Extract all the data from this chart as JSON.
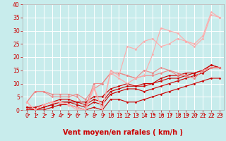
{
  "title": "",
  "xlabel": "Vent moyen/en rafales ( km/h )",
  "ylabel": "",
  "xlim": [
    -0.5,
    23.5
  ],
  "ylim": [
    0,
    40
  ],
  "xticks": [
    0,
    1,
    2,
    3,
    4,
    5,
    6,
    7,
    8,
    9,
    10,
    11,
    12,
    13,
    14,
    15,
    16,
    17,
    18,
    19,
    20,
    21,
    22,
    23
  ],
  "yticks": [
    0,
    5,
    10,
    15,
    20,
    25,
    30,
    35,
    40
  ],
  "background_color": "#c8ecec",
  "grid_color": "#ffffff",
  "lines": [
    {
      "x": [
        0,
        1,
        2,
        3,
        4,
        5,
        6,
        7,
        8,
        9,
        10,
        11,
        12,
        13,
        14,
        15,
        16,
        17,
        18,
        19,
        20,
        21,
        22,
        23
      ],
      "y": [
        0,
        0,
        0,
        1,
        2,
        2,
        1,
        0,
        1,
        0,
        4,
        4,
        3,
        3,
        4,
        5,
        6,
        7,
        8,
        9,
        10,
        11,
        12,
        12
      ],
      "color": "#cc0000",
      "lw": 0.8,
      "marker": "D",
      "ms": 1.5
    },
    {
      "x": [
        0,
        1,
        2,
        3,
        4,
        5,
        6,
        7,
        8,
        9,
        10,
        11,
        12,
        13,
        14,
        15,
        16,
        17,
        18,
        19,
        20,
        21,
        22,
        23
      ],
      "y": [
        0,
        0,
        1,
        2,
        3,
        3,
        2,
        1,
        3,
        2,
        6,
        7,
        8,
        8,
        7,
        8,
        9,
        10,
        11,
        12,
        13,
        14,
        16,
        16
      ],
      "color": "#cc0000",
      "lw": 0.8,
      "marker": "D",
      "ms": 1.5
    },
    {
      "x": [
        0,
        1,
        2,
        3,
        4,
        5,
        6,
        7,
        8,
        9,
        10,
        11,
        12,
        13,
        14,
        15,
        16,
        17,
        18,
        19,
        20,
        21,
        22,
        23
      ],
      "y": [
        1,
        0,
        1,
        2,
        3,
        3,
        3,
        2,
        4,
        3,
        7,
        8,
        9,
        9,
        9,
        10,
        11,
        12,
        12,
        13,
        14,
        15,
        17,
        16
      ],
      "color": "#cc0000",
      "lw": 0.8,
      "marker": "D",
      "ms": 1.5
    },
    {
      "x": [
        0,
        1,
        2,
        3,
        4,
        5,
        6,
        7,
        8,
        9,
        10,
        11,
        12,
        13,
        14,
        15,
        16,
        17,
        18,
        19,
        20,
        21,
        22,
        23
      ],
      "y": [
        1,
        1,
        2,
        3,
        4,
        4,
        3,
        3,
        5,
        5,
        8,
        9,
        10,
        9,
        10,
        10,
        12,
        13,
        13,
        14,
        14,
        15,
        17,
        16
      ],
      "color": "#cc0000",
      "lw": 0.8,
      "marker": "D",
      "ms": 1.5
    },
    {
      "x": [
        0,
        1,
        2,
        3,
        4,
        5,
        6,
        7,
        8,
        9,
        10,
        11,
        12,
        13,
        14,
        15,
        16,
        17,
        18,
        19,
        20,
        21,
        22,
        23
      ],
      "y": [
        3,
        7,
        7,
        5,
        5,
        5,
        6,
        4,
        8,
        10,
        14,
        14,
        13,
        12,
        13,
        13,
        14,
        15,
        14,
        13,
        12,
        15,
        16,
        16
      ],
      "color": "#ee8888",
      "lw": 0.8,
      "marker": "D",
      "ms": 1.5
    },
    {
      "x": [
        0,
        1,
        2,
        3,
        4,
        5,
        6,
        7,
        8,
        9,
        10,
        11,
        12,
        13,
        14,
        15,
        16,
        17,
        18,
        19,
        20,
        21,
        22,
        23
      ],
      "y": [
        3,
        7,
        7,
        6,
        6,
        6,
        5,
        1,
        10,
        10,
        14,
        14,
        13,
        12,
        15,
        14,
        16,
        15,
        13,
        13,
        12,
        15,
        16,
        16
      ],
      "color": "#ee8888",
      "lw": 0.8,
      "marker": "D",
      "ms": 1.5
    },
    {
      "x": [
        0,
        1,
        2,
        3,
        4,
        5,
        6,
        7,
        8,
        9,
        10,
        11,
        12,
        13,
        14,
        15,
        16,
        17,
        18,
        19,
        20,
        21,
        22,
        23
      ],
      "y": [
        3,
        0,
        2,
        3,
        3,
        2,
        1,
        0,
        8,
        0,
        14,
        12,
        10,
        12,
        13,
        21,
        31,
        30,
        29,
        26,
        25,
        28,
        37,
        35
      ],
      "color": "#ffaaaa",
      "lw": 0.8,
      "marker": "D",
      "ms": 1.5
    },
    {
      "x": [
        0,
        1,
        2,
        3,
        4,
        5,
        6,
        7,
        8,
        9,
        10,
        11,
        12,
        13,
        14,
        15,
        16,
        17,
        18,
        19,
        20,
        21,
        22,
        23
      ],
      "y": [
        3,
        0,
        2,
        3,
        3,
        2,
        0,
        0,
        9,
        0,
        15,
        13,
        24,
        23,
        26,
        27,
        24,
        25,
        27,
        26,
        24,
        27,
        36,
        35
      ],
      "color": "#ffaaaa",
      "lw": 0.8,
      "marker": "D",
      "ms": 1.5
    }
  ],
  "xlabel_fontsize": 7,
  "tick_fontsize": 5.5,
  "arrow_color": "#cc0000"
}
